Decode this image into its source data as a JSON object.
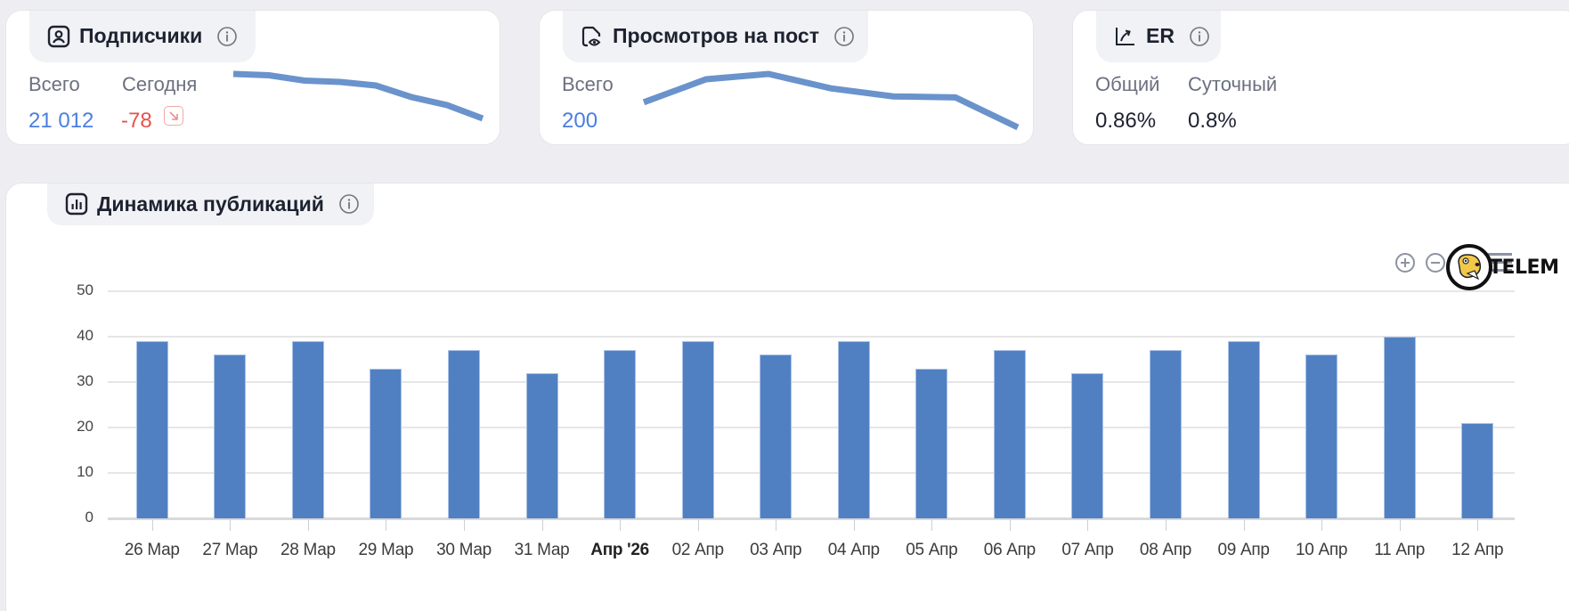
{
  "cards": {
    "subscribers": {
      "title": "Подписчики",
      "icon": "user-square-icon",
      "total_label": "Всего",
      "today_label": "Сегодня",
      "total_value": "21 012",
      "today_value": "-78",
      "trend": "down",
      "sparkline": [
        0.0,
        0.03,
        0.15,
        0.18,
        0.26,
        0.52,
        0.7,
        1.0
      ]
    },
    "views_per_post": {
      "title": "Просмотров на пост",
      "icon": "document-eye-icon",
      "total_label": "Всего",
      "total_value": "200",
      "sparkline": [
        0.53,
        0.1,
        0.0,
        0.27,
        0.42,
        0.44,
        1.0
      ]
    },
    "er": {
      "title": "ER",
      "icon": "chart-trend-icon",
      "total_label": "Общий",
      "daily_label": "Суточный",
      "total_value": "0.86%",
      "daily_value": "0.8%"
    }
  },
  "publications": {
    "title": "Динамика публикаций",
    "icon": "bar-chart-icon",
    "toolbar": {
      "zoom_in": "zoom-in-icon",
      "zoom_out": "zoom-out-icon",
      "menu": "menu-icon"
    },
    "watermark": "TELEM",
    "colors": {
      "bar": "#5180c2"
    }
  },
  "chart_data": {
    "type": "bar",
    "title": "Динамика публикаций",
    "categories": [
      "26 Мар",
      "27 Мар",
      "28 Мар",
      "29 Мар",
      "30 Мар",
      "31 Мар",
      "Апр '26",
      "02 Апр",
      "03 Апр",
      "04 Апр",
      "05 Апр",
      "06 Апр",
      "07 Апр",
      "08 Апр",
      "09 Апр",
      "10 Апр",
      "11 Апр",
      "12 Апр"
    ],
    "values": [
      39,
      36,
      39,
      33,
      37,
      32,
      37,
      39,
      36,
      39,
      33,
      37,
      32,
      37,
      39,
      36,
      40,
      21
    ],
    "yticks": [
      "0",
      "10",
      "20",
      "30",
      "40",
      "50"
    ],
    "ylim": [
      0,
      50
    ],
    "xlabel": "",
    "ylabel": "",
    "grid": true,
    "legend": null
  }
}
